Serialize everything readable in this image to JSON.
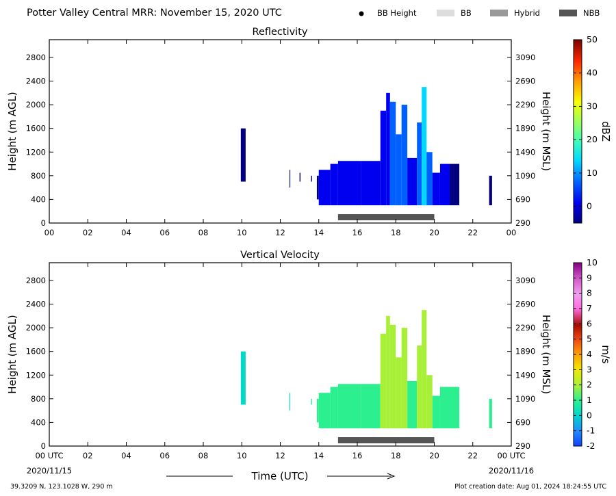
{
  "header": {
    "title": "Potter Valley Central MRR:  November 15, 2020 UTC",
    "legend": [
      {
        "label": "BB Height",
        "kind": "dot",
        "color": "#000000"
      },
      {
        "label": "BB",
        "kind": "swatch",
        "color": "#dddddd"
      },
      {
        "label": "Hybrid",
        "kind": "swatch",
        "color": "#999999"
      },
      {
        "label": "NBB",
        "kind": "swatch",
        "color": "#555555"
      }
    ]
  },
  "footer": {
    "location": "39.3209 N, 123.1028 W, 290 m",
    "creation": "Plot creation date: Aug 01, 2024 18:24:55 UTC",
    "date_left": "2020/11/15",
    "date_right": "2020/11/16",
    "xlabel": "Time (UTC)"
  },
  "chart_data": [
    {
      "type": "heatmap",
      "title": "Reflectivity",
      "xlabel": "Time (UTC)",
      "xticks": [
        "00",
        "02",
        "04",
        "06",
        "08",
        "10",
        "12",
        "14",
        "16",
        "18",
        "20",
        "22",
        "00"
      ],
      "xlim": [
        0,
        24
      ],
      "ylabel": "Height (m AGL)",
      "ylim": [
        0,
        3100
      ],
      "yticks": [
        "0",
        "400",
        "800",
        "1200",
        "1600",
        "2000",
        "2400",
        "2800"
      ],
      "ylabel_right": "Height (m MSL)",
      "yticks_right": [
        "290",
        "690",
        "1090",
        "1490",
        "1890",
        "2290",
        "2690",
        "3090"
      ],
      "colorbar": {
        "label": "dBZ",
        "min": -5,
        "max": 50,
        "ticks": [
          "0",
          "10",
          "20",
          "30",
          "40",
          "50"
        ]
      },
      "echo_columns": [
        {
          "t0": 9.95,
          "t1": 10.2,
          "h0": 700,
          "h1": 1600,
          "level": 0.02
        },
        {
          "t0": 12.48,
          "t1": 12.52,
          "h0": 600,
          "h1": 900,
          "level": 0.02
        },
        {
          "t0": 13.0,
          "t1": 13.05,
          "h0": 700,
          "h1": 850,
          "level": 0.02
        },
        {
          "t0": 13.6,
          "t1": 13.65,
          "h0": 700,
          "h1": 800,
          "level": 0.02
        },
        {
          "t0": 13.9,
          "t1": 14.0,
          "h0": 400,
          "h1": 800,
          "level": 0.03
        },
        {
          "t0": 14.0,
          "t1": 14.6,
          "h0": 300,
          "h1": 900,
          "level": 0.06
        },
        {
          "t0": 14.6,
          "t1": 15.0,
          "h0": 300,
          "h1": 1000,
          "level": 0.08
        },
        {
          "t0": 15.0,
          "t1": 16.2,
          "h0": 300,
          "h1": 1050,
          "level": 0.1
        },
        {
          "t0": 16.2,
          "t1": 17.2,
          "h0": 300,
          "h1": 1050,
          "level": 0.12
        },
        {
          "t0": 17.2,
          "t1": 17.5,
          "h0": 300,
          "h1": 1900,
          "level": 0.14
        },
        {
          "t0": 17.5,
          "t1": 17.7,
          "h0": 300,
          "h1": 2200,
          "level": 0.16
        },
        {
          "t0": 17.7,
          "t1": 18.0,
          "h0": 300,
          "h1": 2050,
          "level": 0.18
        },
        {
          "t0": 18.0,
          "t1": 18.3,
          "h0": 300,
          "h1": 1500,
          "level": 0.2
        },
        {
          "t0": 18.3,
          "t1": 18.6,
          "h0": 300,
          "h1": 2000,
          "level": 0.18
        },
        {
          "t0": 18.6,
          "t1": 19.1,
          "h0": 300,
          "h1": 1100,
          "level": 0.16
        },
        {
          "t0": 19.1,
          "t1": 19.35,
          "h0": 300,
          "h1": 1700,
          "level": 0.22
        },
        {
          "t0": 19.35,
          "t1": 19.6,
          "h0": 300,
          "h1": 2300,
          "level": 0.3
        },
        {
          "t0": 19.6,
          "t1": 19.9,
          "h0": 300,
          "h1": 1200,
          "level": 0.2
        },
        {
          "t0": 19.9,
          "t1": 20.3,
          "h0": 300,
          "h1": 850,
          "level": 0.12
        },
        {
          "t0": 20.3,
          "t1": 20.8,
          "h0": 300,
          "h1": 1000,
          "level": 0.06
        },
        {
          "t0": 20.8,
          "t1": 21.3,
          "h0": 300,
          "h1": 1000,
          "level": 0.05
        },
        {
          "t0": 22.85,
          "t1": 23.0,
          "h0": 300,
          "h1": 800,
          "level": 0.03
        }
      ],
      "bright_band_bars": [
        {
          "type": "NBB",
          "t0": 15.0,
          "t1": 20.0
        }
      ]
    },
    {
      "type": "heatmap",
      "title": "Vertical Velocity",
      "xlabel": "Time (UTC)",
      "xticks": [
        "00 UTC",
        "02",
        "04",
        "06",
        "08",
        "10",
        "12",
        "14",
        "16",
        "18",
        "20",
        "22",
        "00 UTC"
      ],
      "xlim": [
        0,
        24
      ],
      "ylabel": "Height (m AGL)",
      "ylim": [
        0,
        3100
      ],
      "yticks": [
        "0",
        "400",
        "800",
        "1200",
        "1600",
        "2000",
        "2400",
        "2800"
      ],
      "ylabel_right": "Height (m MSL)",
      "yticks_right": [
        "290",
        "690",
        "1090",
        "1490",
        "1890",
        "2290",
        "2690",
        "3090"
      ],
      "colorbar": {
        "label": "m/s",
        "min": -2,
        "max": 10,
        "ticks": [
          "-2",
          "-1",
          "0",
          "1",
          "2",
          "3",
          "4",
          "5",
          "6",
          "7",
          "8",
          "9",
          "10"
        ]
      },
      "echo_columns": [
        {
          "t0": 9.95,
          "t1": 10.2,
          "h0": 700,
          "h1": 1600,
          "level": 0.2
        },
        {
          "t0": 12.48,
          "t1": 12.52,
          "h0": 600,
          "h1": 900,
          "level": 0.2
        },
        {
          "t0": 13.6,
          "t1": 13.65,
          "h0": 700,
          "h1": 800,
          "level": 0.22
        },
        {
          "t0": 13.9,
          "t1": 14.0,
          "h0": 400,
          "h1": 800,
          "level": 0.22
        },
        {
          "t0": 14.0,
          "t1": 14.6,
          "h0": 300,
          "h1": 900,
          "level": 0.23
        },
        {
          "t0": 14.6,
          "t1": 15.0,
          "h0": 300,
          "h1": 1000,
          "level": 0.23
        },
        {
          "t0": 15.0,
          "t1": 16.2,
          "h0": 300,
          "h1": 1050,
          "level": 0.24
        },
        {
          "t0": 16.2,
          "t1": 17.2,
          "h0": 300,
          "h1": 1050,
          "level": 0.26
        },
        {
          "t0": 17.2,
          "t1": 17.5,
          "h0": 300,
          "h1": 1900,
          "level": 0.3
        },
        {
          "t0": 17.5,
          "t1": 17.7,
          "h0": 300,
          "h1": 2200,
          "level": 0.32
        },
        {
          "t0": 17.7,
          "t1": 18.0,
          "h0": 300,
          "h1": 2050,
          "level": 0.31
        },
        {
          "t0": 18.0,
          "t1": 18.3,
          "h0": 300,
          "h1": 1500,
          "level": 0.3
        },
        {
          "t0": 18.3,
          "t1": 18.6,
          "h0": 300,
          "h1": 2000,
          "level": 0.32
        },
        {
          "t0": 18.6,
          "t1": 19.1,
          "h0": 300,
          "h1": 1100,
          "level": 0.28
        },
        {
          "t0": 19.1,
          "t1": 19.35,
          "h0": 300,
          "h1": 1700,
          "level": 0.33
        },
        {
          "t0": 19.35,
          "t1": 19.6,
          "h0": 300,
          "h1": 2300,
          "level": 0.34
        },
        {
          "t0": 19.6,
          "t1": 19.9,
          "h0": 300,
          "h1": 1200,
          "level": 0.31
        },
        {
          "t0": 19.9,
          "t1": 20.3,
          "h0": 300,
          "h1": 850,
          "level": 0.26
        },
        {
          "t0": 20.3,
          "t1": 20.8,
          "h0": 300,
          "h1": 1000,
          "level": 0.23
        },
        {
          "t0": 20.8,
          "t1": 21.3,
          "h0": 300,
          "h1": 1000,
          "level": 0.22
        },
        {
          "t0": 22.85,
          "t1": 23.0,
          "h0": 300,
          "h1": 800,
          "level": 0.25
        }
      ],
      "bright_band_bars": [
        {
          "type": "NBB",
          "t0": 15.0,
          "t1": 20.0
        }
      ]
    }
  ]
}
